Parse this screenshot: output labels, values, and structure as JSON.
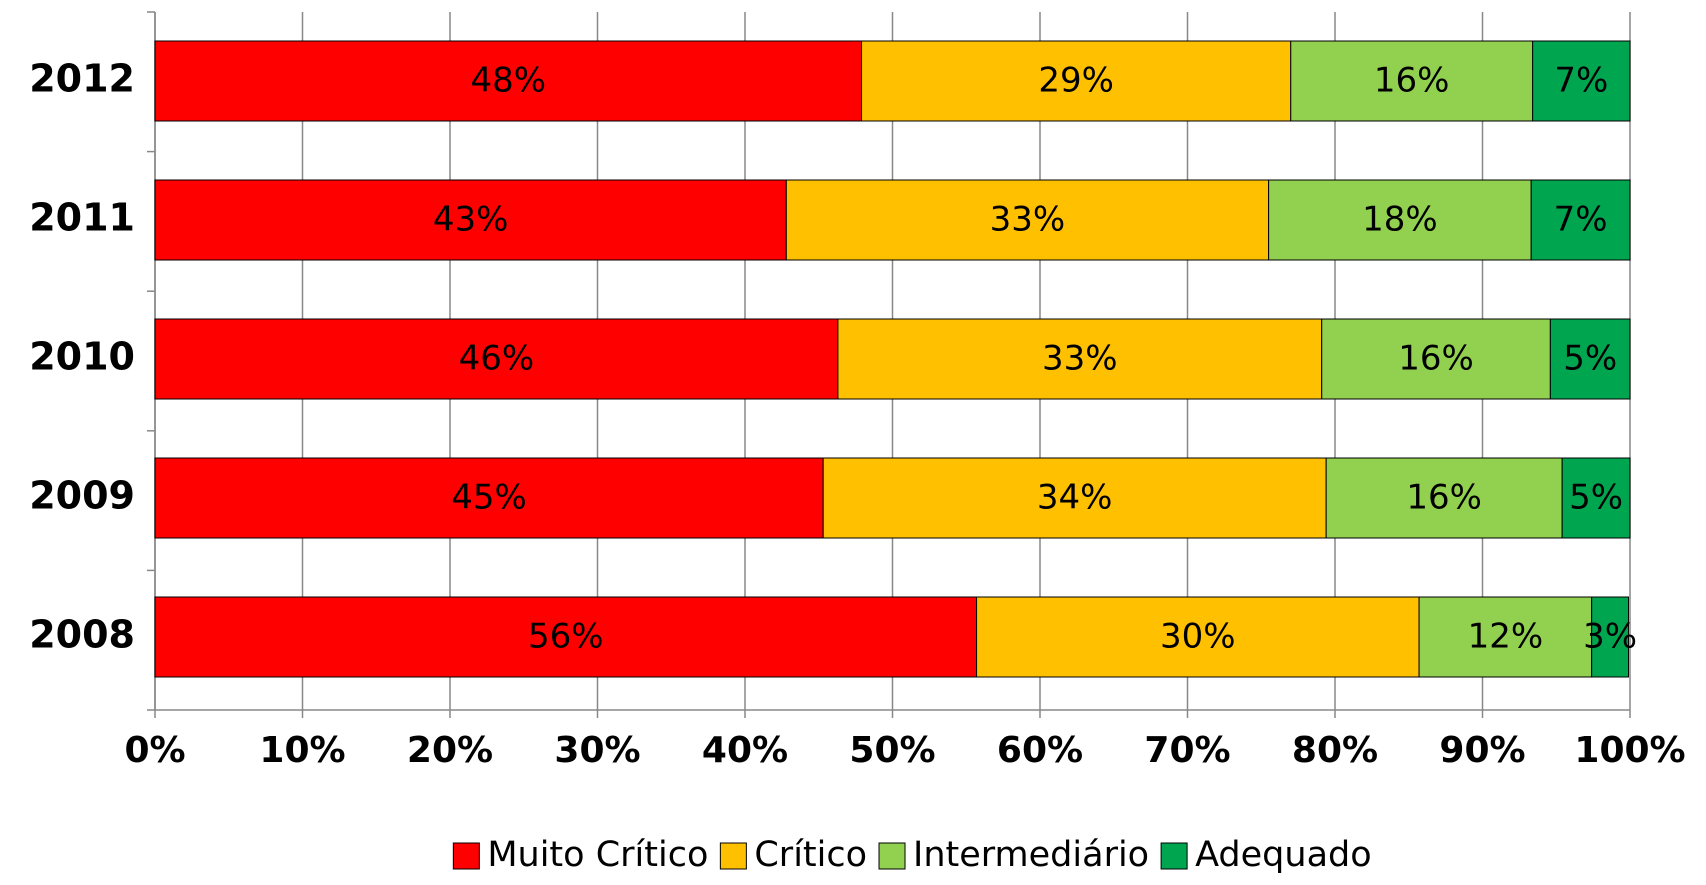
{
  "chart_data": {
    "type": "stacked-barh",
    "categories": [
      "2012",
      "2011",
      "2010",
      "2009",
      "2008"
    ],
    "series": [
      {
        "name": "Muito Crítico",
        "color": "#ff0000",
        "values": [
          47.9,
          42.8,
          46.3,
          45.3,
          55.7
        ],
        "value_labels": [
          "48%",
          "43%",
          "46%",
          "45%",
          "56%"
        ]
      },
      {
        "name": "Crítico",
        "color": "#ffc000",
        "values": [
          29.1,
          32.7,
          32.8,
          34.1,
          30.0
        ],
        "value_labels": [
          "29%",
          "33%",
          "33%",
          "34%",
          "30%"
        ]
      },
      {
        "name": "Intermediário",
        "color": "#92d050",
        "values": [
          16.4,
          17.8,
          15.5,
          16.0,
          11.7
        ],
        "value_labels": [
          "16%",
          "18%",
          "16%",
          "16%",
          "12%"
        ]
      },
      {
        "name": "Adequado",
        "color": "#00a550",
        "values": [
          6.6,
          6.7,
          5.4,
          4.6,
          2.5
        ],
        "value_labels": [
          "7%",
          "7%",
          "5%",
          "5%",
          "3%"
        ]
      }
    ],
    "xlim": [
      0,
      100
    ],
    "xticks": [
      {
        "value": 0,
        "label": "0%"
      },
      {
        "value": 10,
        "label": "10%"
      },
      {
        "value": 20,
        "label": "20%"
      },
      {
        "value": 30,
        "label": "30%"
      },
      {
        "value": 40,
        "label": "40%"
      },
      {
        "value": 50,
        "label": "50%"
      },
      {
        "value": 60,
        "label": "60%"
      },
      {
        "value": 70,
        "label": "70%"
      },
      {
        "value": 80,
        "label": "80%"
      },
      {
        "value": 90,
        "label": "90%"
      },
      {
        "value": 100,
        "label": "100%"
      }
    ],
    "grid": true,
    "legend": "bottom"
  }
}
